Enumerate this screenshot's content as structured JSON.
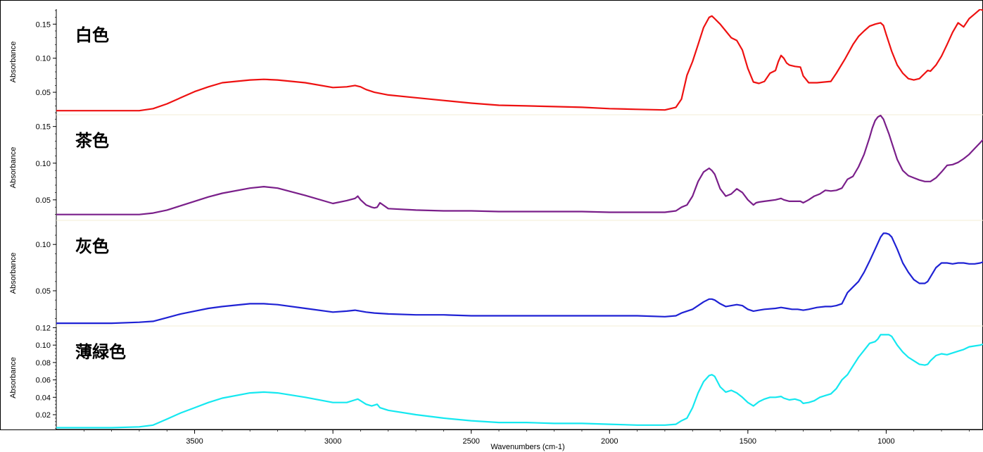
{
  "chart_data": {
    "type": "line",
    "xlabel": "Wavenumbers (cm-1)",
    "x_reversed": true,
    "xlim": [
      4000,
      650
    ],
    "x_ticks": [
      3500,
      3000,
      2500,
      2000,
      1500,
      1000
    ],
    "grid": false,
    "panels": [
      {
        "label": "白色",
        "color": "#ee1111",
        "ylabel": "Absorbance",
        "ylim": [
          0.017,
          0.172
        ],
        "y_ticks": [
          0.05,
          0.1,
          0.15
        ],
        "y_tick_labels": [
          "0.05",
          "0.10",
          "0.15"
        ],
        "x": [
          4000,
          3900,
          3800,
          3700,
          3650,
          3600,
          3550,
          3500,
          3450,
          3400,
          3300,
          3250,
          3200,
          3100,
          3000,
          2950,
          2920,
          2900,
          2880,
          2850,
          2800,
          2700,
          2600,
          2500,
          2400,
          2300,
          2200,
          2100,
          2000,
          1900,
          1800,
          1760,
          1740,
          1720,
          1700,
          1680,
          1660,
          1640,
          1630,
          1620,
          1600,
          1580,
          1560,
          1540,
          1520,
          1500,
          1480,
          1460,
          1440,
          1420,
          1400,
          1390,
          1380,
          1370,
          1360,
          1350,
          1330,
          1310,
          1300,
          1280,
          1250,
          1200,
          1180,
          1150,
          1120,
          1100,
          1080,
          1060,
          1040,
          1030,
          1020,
          1010,
          1000,
          980,
          960,
          940,
          920,
          900,
          880,
          860,
          850,
          840,
          820,
          800,
          780,
          760,
          740,
          720,
          700,
          680,
          660,
          650
        ],
        "y": [
          0.023,
          0.023,
          0.023,
          0.023,
          0.026,
          0.033,
          0.042,
          0.051,
          0.058,
          0.064,
          0.068,
          0.069,
          0.068,
          0.064,
          0.057,
          0.058,
          0.06,
          0.058,
          0.054,
          0.05,
          0.046,
          0.042,
          0.038,
          0.034,
          0.031,
          0.03,
          0.029,
          0.028,
          0.026,
          0.025,
          0.024,
          0.028,
          0.04,
          0.075,
          0.095,
          0.12,
          0.145,
          0.16,
          0.162,
          0.158,
          0.15,
          0.14,
          0.13,
          0.126,
          0.112,
          0.085,
          0.065,
          0.063,
          0.066,
          0.078,
          0.082,
          0.095,
          0.104,
          0.1,
          0.093,
          0.09,
          0.088,
          0.087,
          0.074,
          0.064,
          0.064,
          0.066,
          0.078,
          0.098,
          0.12,
          0.132,
          0.14,
          0.147,
          0.15,
          0.151,
          0.152,
          0.148,
          0.135,
          0.11,
          0.09,
          0.078,
          0.07,
          0.068,
          0.07,
          0.078,
          0.082,
          0.081,
          0.09,
          0.103,
          0.12,
          0.138,
          0.152,
          0.146,
          0.158,
          0.165,
          0.172,
          0.17
        ]
      },
      {
        "label": "茶色",
        "color": "#7a1f8a",
        "ylabel": "Absorbance",
        "ylim": [
          0.022,
          0.166
        ],
        "y_ticks": [
          0.05,
          0.1,
          0.15
        ],
        "y_tick_labels": [
          "0.05",
          "0.10",
          "0.15"
        ],
        "x": [
          4000,
          3900,
          3800,
          3700,
          3650,
          3600,
          3550,
          3500,
          3450,
          3400,
          3300,
          3250,
          3200,
          3100,
          3000,
          2950,
          2920,
          2910,
          2900,
          2880,
          2860,
          2850,
          2840,
          2830,
          2800,
          2700,
          2600,
          2500,
          2400,
          2300,
          2200,
          2100,
          2000,
          1900,
          1800,
          1760,
          1740,
          1720,
          1700,
          1680,
          1660,
          1640,
          1630,
          1620,
          1600,
          1580,
          1560,
          1540,
          1520,
          1500,
          1480,
          1470,
          1460,
          1440,
          1420,
          1400,
          1380,
          1370,
          1350,
          1330,
          1310,
          1300,
          1280,
          1260,
          1240,
          1220,
          1200,
          1180,
          1160,
          1140,
          1120,
          1100,
          1080,
          1060,
          1050,
          1040,
          1030,
          1020,
          1010,
          1000,
          990,
          980,
          960,
          940,
          920,
          900,
          880,
          860,
          840,
          820,
          800,
          780,
          760,
          740,
          720,
          700,
          680,
          660,
          650
        ],
        "y": [
          0.03,
          0.03,
          0.03,
          0.03,
          0.032,
          0.036,
          0.042,
          0.048,
          0.054,
          0.059,
          0.066,
          0.068,
          0.066,
          0.056,
          0.045,
          0.049,
          0.052,
          0.055,
          0.05,
          0.043,
          0.04,
          0.039,
          0.04,
          0.046,
          0.038,
          0.036,
          0.035,
          0.035,
          0.034,
          0.034,
          0.034,
          0.034,
          0.033,
          0.033,
          0.033,
          0.035,
          0.04,
          0.043,
          0.055,
          0.075,
          0.088,
          0.093,
          0.09,
          0.085,
          0.065,
          0.055,
          0.058,
          0.065,
          0.06,
          0.05,
          0.043,
          0.046,
          0.047,
          0.048,
          0.049,
          0.05,
          0.052,
          0.05,
          0.048,
          0.048,
          0.048,
          0.046,
          0.05,
          0.055,
          0.058,
          0.063,
          0.062,
          0.063,
          0.066,
          0.078,
          0.082,
          0.095,
          0.112,
          0.135,
          0.148,
          0.158,
          0.163,
          0.165,
          0.16,
          0.15,
          0.14,
          0.128,
          0.105,
          0.09,
          0.083,
          0.08,
          0.077,
          0.075,
          0.075,
          0.08,
          0.088,
          0.097,
          0.098,
          0.101,
          0.106,
          0.112,
          0.12,
          0.128,
          0.132
        ]
      },
      {
        "label": "灰色",
        "color": "#1f22d4",
        "ylabel": "Absorbance",
        "ylim": [
          0.012,
          0.126
        ],
        "y_ticks": [
          0.05,
          0.1
        ],
        "y_tick_labels": [
          "0.05",
          "0.10"
        ],
        "x": [
          4000,
          3900,
          3800,
          3700,
          3650,
          3600,
          3550,
          3500,
          3450,
          3400,
          3300,
          3250,
          3200,
          3100,
          3000,
          2950,
          2920,
          2900,
          2880,
          2850,
          2800,
          2700,
          2600,
          2500,
          2400,
          2300,
          2200,
          2100,
          2000,
          1900,
          1800,
          1760,
          1740,
          1720,
          1700,
          1680,
          1660,
          1640,
          1630,
          1620,
          1600,
          1580,
          1560,
          1540,
          1520,
          1500,
          1480,
          1460,
          1440,
          1400,
          1380,
          1360,
          1340,
          1320,
          1300,
          1280,
          1250,
          1220,
          1200,
          1180,
          1160,
          1140,
          1120,
          1100,
          1080,
          1060,
          1040,
          1020,
          1010,
          1000,
          990,
          980,
          960,
          940,
          920,
          900,
          880,
          860,
          850,
          840,
          820,
          800,
          780,
          760,
          740,
          720,
          700,
          680,
          660,
          650
        ],
        "y": [
          0.015,
          0.015,
          0.015,
          0.016,
          0.017,
          0.021,
          0.025,
          0.028,
          0.031,
          0.033,
          0.036,
          0.036,
          0.035,
          0.031,
          0.027,
          0.028,
          0.029,
          0.028,
          0.027,
          0.026,
          0.025,
          0.024,
          0.024,
          0.023,
          0.023,
          0.023,
          0.023,
          0.023,
          0.023,
          0.023,
          0.022,
          0.023,
          0.026,
          0.028,
          0.03,
          0.034,
          0.038,
          0.041,
          0.041,
          0.04,
          0.036,
          0.033,
          0.034,
          0.035,
          0.034,
          0.03,
          0.028,
          0.029,
          0.03,
          0.031,
          0.032,
          0.031,
          0.03,
          0.03,
          0.029,
          0.03,
          0.032,
          0.033,
          0.033,
          0.034,
          0.036,
          0.048,
          0.054,
          0.06,
          0.07,
          0.082,
          0.095,
          0.108,
          0.112,
          0.112,
          0.111,
          0.108,
          0.095,
          0.08,
          0.07,
          0.062,
          0.058,
          0.058,
          0.06,
          0.065,
          0.075,
          0.08,
          0.08,
          0.079,
          0.08,
          0.08,
          0.079,
          0.079,
          0.08,
          0.081
        ]
      },
      {
        "label": "薄緑色",
        "color": "#15e8f0",
        "ylabel": "Absorbance",
        "ylim": [
          0.003,
          0.122
        ],
        "y_ticks": [
          0.02,
          0.04,
          0.06,
          0.08,
          0.1,
          0.12
        ],
        "y_tick_labels": [
          "0.02",
          "0.04",
          "0.06",
          "0.08",
          "0.10",
          "0.12"
        ],
        "x": [
          4000,
          3900,
          3800,
          3700,
          3650,
          3600,
          3550,
          3500,
          3450,
          3400,
          3300,
          3250,
          3200,
          3100,
          3000,
          2950,
          2920,
          2910,
          2900,
          2880,
          2860,
          2850,
          2840,
          2830,
          2800,
          2700,
          2600,
          2500,
          2400,
          2300,
          2200,
          2100,
          2000,
          1900,
          1800,
          1760,
          1740,
          1720,
          1700,
          1680,
          1660,
          1640,
          1630,
          1620,
          1600,
          1580,
          1560,
          1540,
          1520,
          1500,
          1480,
          1460,
          1440,
          1420,
          1400,
          1380,
          1370,
          1350,
          1330,
          1310,
          1300,
          1280,
          1260,
          1240,
          1220,
          1200,
          1180,
          1160,
          1140,
          1120,
          1100,
          1080,
          1060,
          1040,
          1030,
          1020,
          1010,
          1000,
          990,
          980,
          960,
          940,
          920,
          900,
          880,
          860,
          850,
          840,
          820,
          800,
          780,
          760,
          740,
          720,
          700,
          680,
          660,
          650
        ],
        "y": [
          0.005,
          0.005,
          0.005,
          0.006,
          0.008,
          0.015,
          0.022,
          0.028,
          0.034,
          0.039,
          0.045,
          0.046,
          0.045,
          0.04,
          0.034,
          0.034,
          0.037,
          0.038,
          0.036,
          0.032,
          0.03,
          0.031,
          0.032,
          0.028,
          0.025,
          0.02,
          0.016,
          0.013,
          0.011,
          0.011,
          0.01,
          0.01,
          0.009,
          0.008,
          0.008,
          0.009,
          0.013,
          0.016,
          0.028,
          0.045,
          0.058,
          0.065,
          0.066,
          0.064,
          0.052,
          0.046,
          0.048,
          0.045,
          0.04,
          0.034,
          0.03,
          0.035,
          0.038,
          0.04,
          0.04,
          0.041,
          0.039,
          0.037,
          0.038,
          0.036,
          0.033,
          0.034,
          0.036,
          0.04,
          0.042,
          0.044,
          0.05,
          0.06,
          0.066,
          0.076,
          0.086,
          0.094,
          0.102,
          0.104,
          0.107,
          0.112,
          0.112,
          0.112,
          0.112,
          0.11,
          0.1,
          0.092,
          0.086,
          0.082,
          0.078,
          0.077,
          0.078,
          0.082,
          0.088,
          0.09,
          0.089,
          0.091,
          0.093,
          0.095,
          0.098,
          0.099,
          0.1,
          0.101
        ]
      }
    ]
  }
}
